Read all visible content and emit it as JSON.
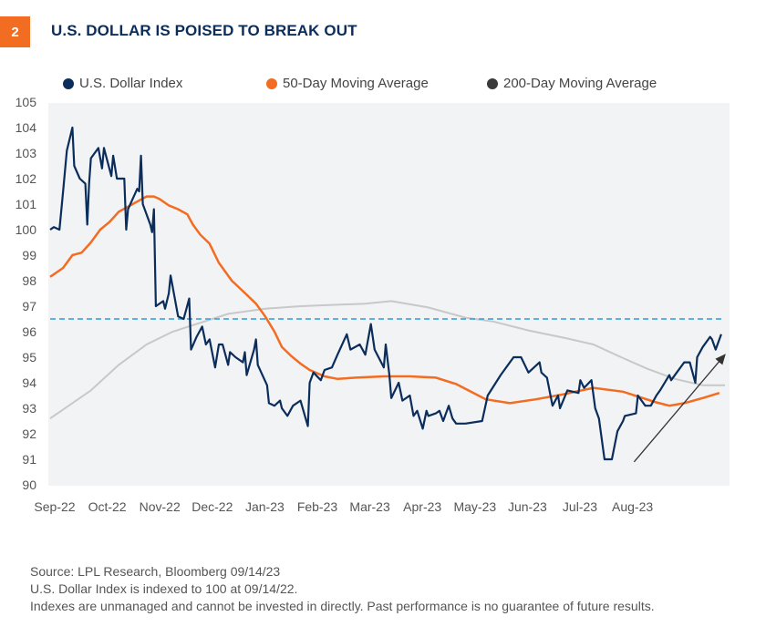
{
  "figure_number": "2",
  "title": "U.S. DOLLAR IS POISED TO BREAK OUT",
  "colors": {
    "badge": "#f26c21",
    "title": "#0b2d5b",
    "dxy": "#0b2d5b",
    "ma50": "#f26c21",
    "ma200": "#c8c8c8",
    "ma200_legend": "#3a3a3a",
    "reference_line": "#2a9fd6",
    "plot_bg": "#f2f3f5"
  },
  "footer": {
    "source": "Source: LPL Research, Bloomberg  09/14/23",
    "note": "U.S. Dollar Index is indexed to 100 at 09/14/22.",
    "disclaimer": "Indexes are unmanaged and cannot be invested in directly. Past performance is no guarantee of future results."
  },
  "chart_data": {
    "type": "line",
    "title": "U.S. DOLLAR IS POISED TO BREAK OUT",
    "xlabel": "",
    "ylabel": "",
    "xlim": [
      "2022-09-14",
      "2023-09-13"
    ],
    "ylim": [
      90,
      105
    ],
    "yticks": [
      90,
      91,
      92,
      93,
      94,
      95,
      96,
      97,
      98,
      99,
      100,
      101,
      102,
      103,
      104,
      105
    ],
    "xtick_labels": [
      "Sep-22",
      "Oct-22",
      "Nov-22",
      "Dec-22",
      "Jan-23",
      "Feb-23",
      "Mar-23",
      "Apr-23",
      "May-23",
      "Jun-23",
      "Jul-23",
      "Aug-23"
    ],
    "grid": false,
    "legend_position": "top",
    "reference_line": {
      "y": 96.5,
      "style": "dashed"
    },
    "annotation_arrow": {
      "from": [
        "2023-07-26",
        90.9
      ],
      "to": [
        "2023-09-13",
        95.1
      ]
    },
    "series": [
      {
        "name": "U.S. Dollar Index",
        "points": [
          [
            "2022-09-14",
            100.0
          ],
          [
            "2022-09-16",
            100.1
          ],
          [
            "2022-09-19",
            100.0
          ],
          [
            "2022-09-21",
            101.5
          ],
          [
            "2022-09-23",
            103.1
          ],
          [
            "2022-09-26",
            104.0
          ],
          [
            "2022-09-27",
            102.5
          ],
          [
            "2022-09-30",
            102.0
          ],
          [
            "2022-10-03",
            101.8
          ],
          [
            "2022-10-04",
            100.2
          ],
          [
            "2022-10-05",
            101.8
          ],
          [
            "2022-10-06",
            102.8
          ],
          [
            "2022-10-10",
            103.2
          ],
          [
            "2022-10-12",
            102.4
          ],
          [
            "2022-10-13",
            103.2
          ],
          [
            "2022-10-17",
            102.1
          ],
          [
            "2022-10-18",
            102.9
          ],
          [
            "2022-10-20",
            102.0
          ],
          [
            "2022-10-24",
            102.0
          ],
          [
            "2022-10-25",
            100.0
          ],
          [
            "2022-10-26",
            100.8
          ],
          [
            "2022-10-31",
            101.6
          ],
          [
            "2022-11-01",
            101.5
          ],
          [
            "2022-11-02",
            102.9
          ],
          [
            "2022-11-03",
            101.0
          ],
          [
            "2022-11-07",
            100.2
          ],
          [
            "2022-11-08",
            99.9
          ],
          [
            "2022-11-09",
            100.8
          ],
          [
            "2022-11-10",
            97.0
          ],
          [
            "2022-11-14",
            97.2
          ],
          [
            "2022-11-15",
            96.9
          ],
          [
            "2022-11-17",
            97.5
          ],
          [
            "2022-11-18",
            98.2
          ],
          [
            "2022-11-22",
            96.6
          ],
          [
            "2022-11-25",
            96.5
          ],
          [
            "2022-11-28",
            97.3
          ],
          [
            "2022-11-29",
            95.3
          ],
          [
            "2022-12-02",
            95.8
          ],
          [
            "2022-12-05",
            96.2
          ],
          [
            "2022-12-07",
            95.5
          ],
          [
            "2022-12-09",
            95.7
          ],
          [
            "2022-12-12",
            94.6
          ],
          [
            "2022-12-14",
            95.5
          ],
          [
            "2022-12-16",
            95.5
          ],
          [
            "2022-12-19",
            94.7
          ],
          [
            "2022-12-20",
            95.2
          ],
          [
            "2022-12-23",
            95.0
          ],
          [
            "2022-12-27",
            94.8
          ],
          [
            "2022-12-28",
            95.2
          ],
          [
            "2022-12-29",
            94.3
          ],
          [
            "2023-01-02",
            95.3
          ],
          [
            "2023-01-03",
            95.7
          ],
          [
            "2023-01-04",
            94.7
          ],
          [
            "2023-01-09",
            93.9
          ],
          [
            "2023-01-10",
            93.2
          ],
          [
            "2023-01-13",
            93.1
          ],
          [
            "2023-01-16",
            93.3
          ],
          [
            "2023-01-17",
            93.0
          ],
          [
            "2023-01-20",
            92.7
          ],
          [
            "2023-01-23",
            93.1
          ],
          [
            "2023-01-27",
            93.3
          ],
          [
            "2023-01-31",
            92.3
          ],
          [
            "2023-02-01",
            94.0
          ],
          [
            "2023-02-03",
            94.4
          ],
          [
            "2023-02-07",
            94.1
          ],
          [
            "2023-02-09",
            94.5
          ],
          [
            "2023-02-13",
            94.6
          ],
          [
            "2023-02-16",
            95.1
          ],
          [
            "2023-02-21",
            95.9
          ],
          [
            "2023-02-23",
            95.3
          ],
          [
            "2023-02-28",
            95.5
          ],
          [
            "2023-03-03",
            95.1
          ],
          [
            "2023-03-06",
            96.3
          ],
          [
            "2023-03-08",
            95.3
          ],
          [
            "2023-03-13",
            94.6
          ],
          [
            "2023-03-14",
            95.5
          ],
          [
            "2023-03-16",
            94.3
          ],
          [
            "2023-03-17",
            93.4
          ],
          [
            "2023-03-21",
            94.0
          ],
          [
            "2023-03-23",
            93.3
          ],
          [
            "2023-03-27",
            93.5
          ],
          [
            "2023-03-29",
            92.7
          ],
          [
            "2023-03-31",
            92.9
          ],
          [
            "2023-04-03",
            92.2
          ],
          [
            "2023-04-05",
            92.9
          ],
          [
            "2023-04-06",
            92.7
          ],
          [
            "2023-04-10",
            92.8
          ],
          [
            "2023-04-12",
            92.9
          ],
          [
            "2023-04-14",
            92.5
          ],
          [
            "2023-04-17",
            93.1
          ],
          [
            "2023-04-19",
            92.6
          ],
          [
            "2023-04-21",
            92.4
          ],
          [
            "2023-04-26",
            92.4
          ],
          [
            "2023-05-05",
            92.5
          ],
          [
            "2023-05-08",
            93.5
          ],
          [
            "2023-05-15",
            94.3
          ],
          [
            "2023-05-22",
            95.0
          ],
          [
            "2023-05-26",
            95.0
          ],
          [
            "2023-05-30",
            94.4
          ],
          [
            "2023-06-05",
            94.8
          ],
          [
            "2023-06-06",
            94.4
          ],
          [
            "2023-06-09",
            94.2
          ],
          [
            "2023-06-12",
            93.1
          ],
          [
            "2023-06-15",
            93.5
          ],
          [
            "2023-06-16",
            93.0
          ],
          [
            "2023-06-20",
            93.7
          ],
          [
            "2023-06-26",
            93.6
          ],
          [
            "2023-06-27",
            94.1
          ],
          [
            "2023-06-29",
            93.8
          ],
          [
            "2023-07-03",
            94.1
          ],
          [
            "2023-07-05",
            93.0
          ],
          [
            "2023-07-07",
            92.6
          ],
          [
            "2023-07-10",
            91.0
          ],
          [
            "2023-07-14",
            91.0
          ],
          [
            "2023-07-17",
            92.1
          ],
          [
            "2023-07-20",
            92.5
          ],
          [
            "2023-07-21",
            92.7
          ],
          [
            "2023-07-27",
            92.8
          ],
          [
            "2023-07-28",
            93.5
          ],
          [
            "2023-08-01",
            93.1
          ],
          [
            "2023-08-04",
            93.1
          ],
          [
            "2023-08-07",
            93.5
          ],
          [
            "2023-08-09",
            93.7
          ],
          [
            "2023-08-14",
            94.3
          ],
          [
            "2023-08-15",
            94.1
          ],
          [
            "2023-08-18",
            94.4
          ],
          [
            "2023-08-22",
            94.8
          ],
          [
            "2023-08-25",
            94.8
          ],
          [
            "2023-08-28",
            94.0
          ],
          [
            "2023-08-29",
            95.0
          ],
          [
            "2023-09-01",
            95.4
          ],
          [
            "2023-09-05",
            95.8
          ],
          [
            "2023-09-06",
            95.7
          ],
          [
            "2023-09-08",
            95.3
          ],
          [
            "2023-09-11",
            95.9
          ]
        ]
      },
      {
        "name": "50-Day Moving Average",
        "points": [
          [
            "2022-09-14",
            98.15
          ],
          [
            "2022-09-21",
            98.5
          ],
          [
            "2022-09-26",
            99.0
          ],
          [
            "2022-10-01",
            99.1
          ],
          [
            "2022-10-06",
            99.5
          ],
          [
            "2022-10-11",
            100.0
          ],
          [
            "2022-10-16",
            100.3
          ],
          [
            "2022-10-21",
            100.7
          ],
          [
            "2022-10-26",
            100.9
          ],
          [
            "2022-10-31",
            101.1
          ],
          [
            "2022-11-05",
            101.3
          ],
          [
            "2022-11-09",
            101.3
          ],
          [
            "2022-11-12",
            101.2
          ],
          [
            "2022-11-17",
            100.95
          ],
          [
            "2022-11-22",
            100.8
          ],
          [
            "2022-11-27",
            100.6
          ],
          [
            "2022-11-30",
            100.2
          ],
          [
            "2022-12-04",
            99.8
          ],
          [
            "2022-12-09",
            99.45
          ],
          [
            "2022-12-14",
            98.7
          ],
          [
            "2022-12-21",
            98.0
          ],
          [
            "2022-12-29",
            97.45
          ],
          [
            "2023-01-03",
            97.1
          ],
          [
            "2023-01-08",
            96.6
          ],
          [
            "2023-01-13",
            96.0
          ],
          [
            "2023-01-17",
            95.4
          ],
          [
            "2023-01-22",
            95.05
          ],
          [
            "2023-01-27",
            94.75
          ],
          [
            "2023-02-01",
            94.5
          ],
          [
            "2023-02-09",
            94.25
          ],
          [
            "2023-02-16",
            94.15
          ],
          [
            "2023-02-26",
            94.2
          ],
          [
            "2023-03-13",
            94.25
          ],
          [
            "2023-03-27",
            94.25
          ],
          [
            "2023-04-10",
            94.2
          ],
          [
            "2023-04-21",
            93.95
          ],
          [
            "2023-05-07",
            93.35
          ],
          [
            "2023-05-20",
            93.2
          ],
          [
            "2023-06-03",
            93.35
          ],
          [
            "2023-06-18",
            93.55
          ],
          [
            "2023-07-04",
            93.8
          ],
          [
            "2023-07-20",
            93.65
          ],
          [
            "2023-08-06",
            93.25
          ],
          [
            "2023-08-14",
            93.1
          ],
          [
            "2023-08-22",
            93.2
          ],
          [
            "2023-09-01",
            93.4
          ],
          [
            "2023-09-10",
            93.6
          ]
        ]
      },
      {
        "name": "200-Day Moving Average",
        "points": [
          [
            "2022-09-14",
            92.6
          ],
          [
            "2022-10-06",
            93.7
          ],
          [
            "2022-10-21",
            94.7
          ],
          [
            "2022-11-05",
            95.5
          ],
          [
            "2022-11-19",
            96.0
          ],
          [
            "2022-12-04",
            96.35
          ],
          [
            "2022-12-19",
            96.7
          ],
          [
            "2023-01-08",
            96.9
          ],
          [
            "2023-01-27",
            97.0
          ],
          [
            "2023-03-03",
            97.1
          ],
          [
            "2023-03-17",
            97.2
          ],
          [
            "2023-04-06",
            96.95
          ],
          [
            "2023-04-26",
            96.55
          ],
          [
            "2023-05-11",
            96.4
          ],
          [
            "2023-05-30",
            96.05
          ],
          [
            "2023-06-19",
            95.75
          ],
          [
            "2023-07-04",
            95.5
          ],
          [
            "2023-07-19",
            95.0
          ],
          [
            "2023-08-02",
            94.55
          ],
          [
            "2023-08-17",
            94.15
          ],
          [
            "2023-09-01",
            93.9
          ],
          [
            "2023-09-13",
            93.9
          ]
        ]
      }
    ]
  }
}
